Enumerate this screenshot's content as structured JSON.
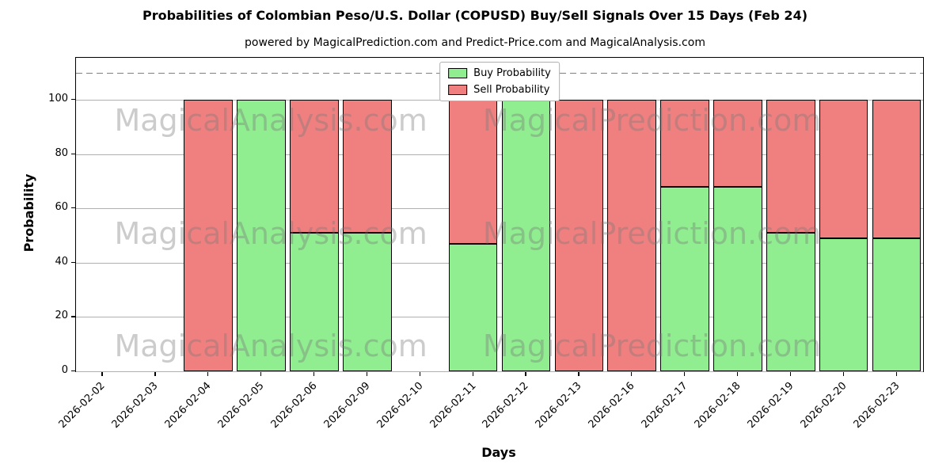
{
  "chart_data": {
    "type": "bar",
    "stacked": true,
    "title": "Probabilities of Colombian Peso/U.S. Dollar (COPUSD) Buy/Sell Signals Over 15 Days (Feb 24)",
    "subtitle": "powered by MagicalPrediction.com and Predict-Price.com and MagicalAnalysis.com",
    "xlabel": "Days",
    "ylabel": "Probability",
    "ylim": [
      0,
      115.5
    ],
    "yticks": [
      0,
      20,
      40,
      60,
      80,
      100
    ],
    "dashed_line_y": 110,
    "grid": "horizontal",
    "legend_position": "top-center",
    "categories": [
      "2026-02-02",
      "2026-02-03",
      "2026-02-04",
      "2026-02-05",
      "2026-02-06",
      "2026-02-09",
      "2026-02-10",
      "2026-02-11",
      "2026-02-12",
      "2026-02-13",
      "2026-02-16",
      "2026-02-17",
      "2026-02-18",
      "2026-02-19",
      "2026-02-20",
      "2026-02-23"
    ],
    "series": [
      {
        "name": "Buy Probability",
        "color": "#90EE90",
        "values": [
          0,
          0,
          0,
          100,
          51,
          51,
          0,
          47,
          100,
          0,
          0,
          68,
          68,
          51,
          49,
          49
        ]
      },
      {
        "name": "Sell Probability",
        "color": "#F08080",
        "values": [
          0,
          0,
          100,
          0,
          49,
          49,
          0,
          53,
          0,
          100,
          100,
          32,
          32,
          49,
          51,
          51
        ]
      }
    ],
    "watermarks": {
      "left": "MagicalAnalysis.com",
      "right": "MagicalPrediction.com"
    }
  }
}
